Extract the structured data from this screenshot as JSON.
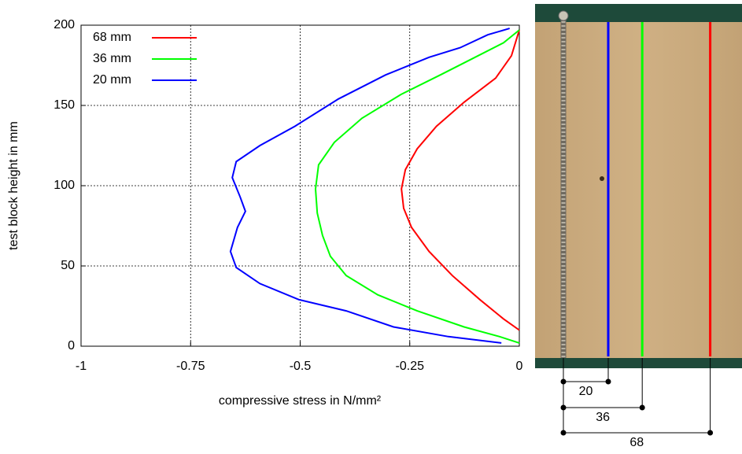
{
  "chart_data": {
    "type": "line",
    "x_label": "compressive stress in N/mm²",
    "y_label": "test block height in mm",
    "xlim": [
      -1,
      0
    ],
    "ylim": [
      0,
      200
    ],
    "xticks": [
      -1,
      -0.75,
      -0.5,
      -0.25,
      0
    ],
    "yticks": [
      0,
      50,
      100,
      150,
      200
    ],
    "grid": true,
    "legend": "top-left",
    "series": [
      {
        "name": "68 mm",
        "color": "#ff0000",
        "x": [
          0,
          -0.018,
          -0.054,
          -0.126,
          -0.189,
          -0.233,
          -0.26,
          -0.269,
          -0.264,
          -0.246,
          -0.206,
          -0.153,
          -0.09,
          -0.036,
          0
        ],
        "values": [
          197,
          181,
          167,
          152,
          137,
          123,
          110,
          98,
          86,
          74,
          59,
          44,
          29,
          17,
          10
        ]
      },
      {
        "name": "36 mm",
        "color": "#00ff00",
        "x": [
          0,
          -0.036,
          -0.108,
          -0.18,
          -0.269,
          -0.359,
          -0.422,
          -0.458,
          -0.465,
          -0.461,
          -0.449,
          -0.431,
          -0.395,
          -0.323,
          -0.233,
          -0.126,
          -0.045,
          0
        ],
        "values": [
          197,
          189,
          179,
          169,
          157,
          142,
          127,
          113,
          98,
          83,
          69,
          56,
          44,
          32,
          22,
          12,
          6,
          2
        ]
      },
      {
        "name": "20 mm",
        "color": "#0000ff",
        "x": [
          -0.022,
          -0.072,
          -0.135,
          -0.206,
          -0.305,
          -0.413,
          -0.512,
          -0.592,
          -0.646,
          -0.655,
          -0.637,
          -0.625,
          -0.643,
          -0.659,
          -0.646,
          -0.592,
          -0.503,
          -0.395,
          -0.287,
          -0.162,
          -0.041
        ],
        "values": [
          198,
          194,
          186,
          180,
          169,
          154,
          137,
          125,
          115,
          105,
          93,
          84,
          74,
          59,
          49,
          39,
          29,
          22,
          12,
          6,
          2
        ]
      }
    ]
  },
  "photo": {
    "dimensions": [
      20,
      36,
      68
    ]
  }
}
